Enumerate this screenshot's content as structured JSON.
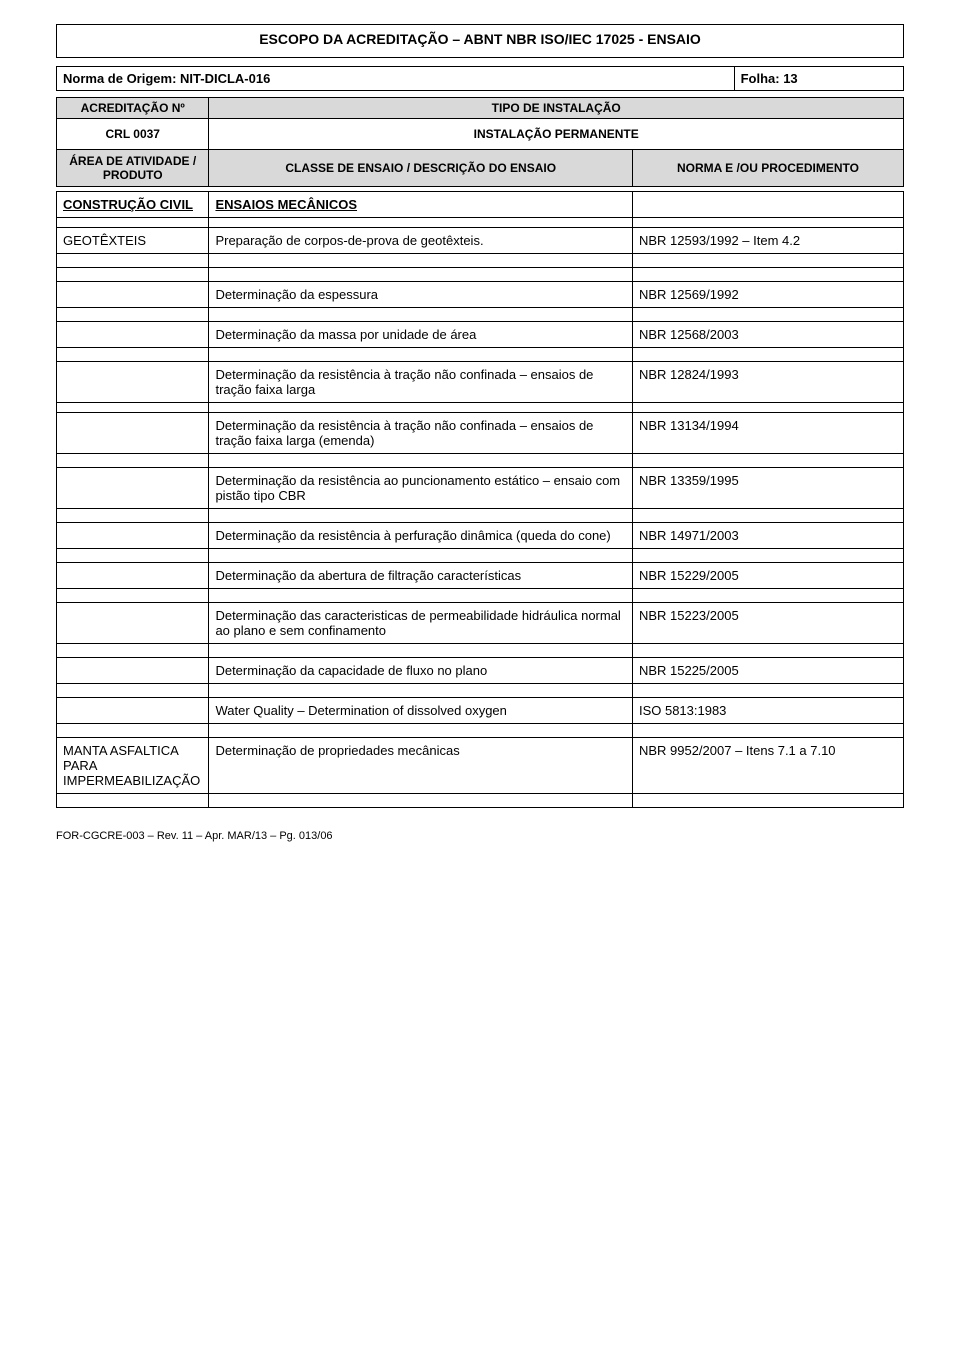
{
  "doc_title": "ESCOPO DA ACREDITAÇÃO – ABNT NBR ISO/IEC 17025 - ENSAIO",
  "meta": {
    "origin_label": "Norma de Origem: NIT-DICLA-016",
    "folha_label": "Folha: 13"
  },
  "header": {
    "acred_label": "ACREDITAÇÃO Nº",
    "tipo_label": "TIPO DE INSTALAÇÃO",
    "crl": "CRL 0037",
    "instal": "INSTALAÇÃO PERMANENTE",
    "col_area": "ÁREA DE ATIVIDADE / PRODUTO",
    "col_classe": "CLASSE DE ENSAIO / DESCRIÇÃO DO ENSAIO",
    "col_norma": "NORMA E /OU PROCEDIMENTO"
  },
  "rows": {
    "r0": {
      "area": "CONSTRUÇÃO CIVIL",
      "classe": "ENSAIOS MECÂNICOS",
      "norma": ""
    },
    "r1": {
      "area": "GEOTÊXTEIS",
      "classe": "Preparação de corpos-de-prova de geotêxteis.",
      "norma": "NBR 12593/1992 – Item 4.2"
    },
    "r2": {
      "classe": "Determinação da espessura",
      "norma": "NBR 12569/1992"
    },
    "r3": {
      "classe": "Determinação da massa por unidade de área",
      "norma": "NBR 12568/2003"
    },
    "r4": {
      "classe": "Determinação da resistência à tração não confinada – ensaios de tração faixa larga",
      "norma": "NBR 12824/1993"
    },
    "r5": {
      "classe": "Determinação da resistência à tração não confinada – ensaios de tração faixa larga (emenda)",
      "norma": "NBR 13134/1994"
    },
    "r6": {
      "classe": "Determinação da resistência ao puncionamento estático – ensaio com pistão tipo CBR",
      "norma": "NBR 13359/1995"
    },
    "r7": {
      "classe": "Determinação da resistência à perfuração dinâmica (queda do cone)",
      "norma": "NBR 14971/2003"
    },
    "r8": {
      "classe": "Determinação da abertura de filtração características",
      "norma": "NBR 15229/2005"
    },
    "r9": {
      "classe": "Determinação das caracteristicas de permeabilidade hidráulica normal ao plano e sem confinamento",
      "norma": "NBR 15223/2005"
    },
    "r10": {
      "classe": "Determinação da capacidade de fluxo no plano",
      "norma": "NBR 15225/2005"
    },
    "r11": {
      "classe": "Water Quality – Determination of dissolved oxygen",
      "norma": "ISO 5813:1983"
    },
    "r12": {
      "area": "MANTA ASFALTICA PARA IMPERMEABILIZAÇÃO",
      "classe": "Determinação de propriedades mecânicas",
      "norma": "NBR 9952/2007 – Itens 7.1 a 7.10"
    }
  },
  "footer": "FOR-CGCRE-003 – Rev. 11 – Apr. MAR/13 – Pg. 013/06",
  "colors": {
    "header_bg": "#d9d9d9",
    "border": "#000000",
    "text": "#000000",
    "page_bg": "#ffffff"
  },
  "typography": {
    "title_size_pt": 14,
    "body_size_pt": 13,
    "small_size_pt": 11,
    "font_family": "Arial"
  }
}
